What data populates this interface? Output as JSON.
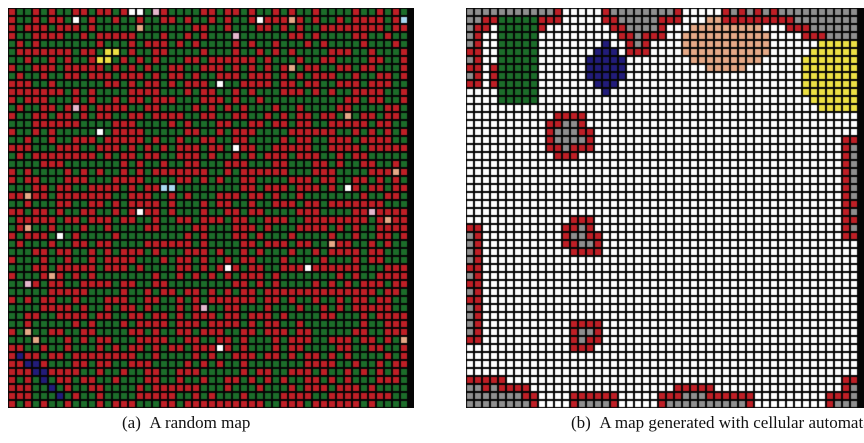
{
  "figures": [
    {
      "caption_label": "(a)",
      "caption_text": "A random map"
    },
    {
      "caption_label": "(b)",
      "caption_text": "A map generated with cellular automata"
    }
  ],
  "tile_colors": {
    "grid_gap": "#050505",
    "wall": "#bf1f26",
    "grass": "#1c6d2a",
    "floor": "#8f8f8f",
    "open": "#ffffff",
    "water": "#221c7a",
    "sand": "#ece044",
    "dirt": "#e5a987",
    "pink": "#e3b7cc",
    "light_blue": "#a8d9ef"
  }
}
